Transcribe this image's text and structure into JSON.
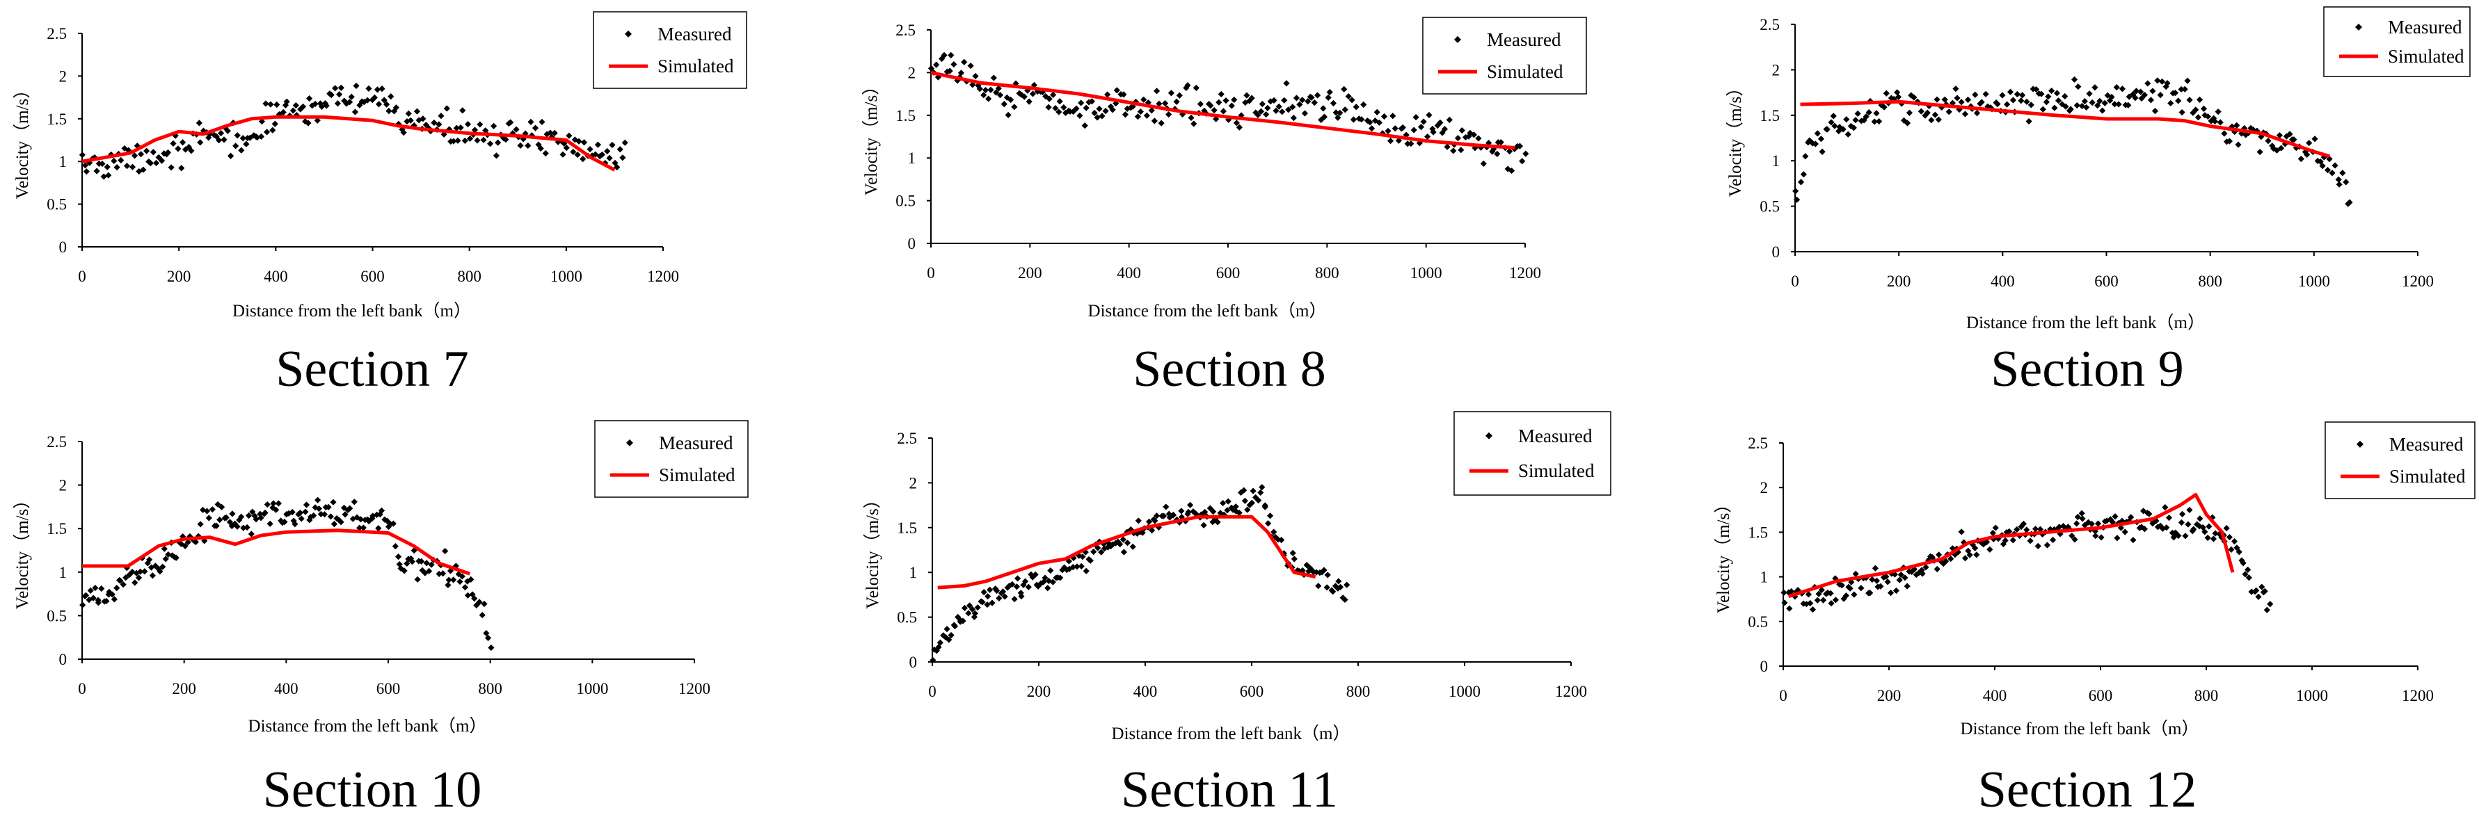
{
  "figure": {
    "legend_labels": {
      "measured": "Measured",
      "simulated": "Simulated"
    },
    "colors": {
      "measured": "#000000",
      "simulated": "#ff0000",
      "axis": "#000000"
    }
  },
  "chart_data": [
    {
      "type": "scatter",
      "title": "Section 7",
      "xlabel": "Distance from the left bank（m）",
      "ylabel": "Velocity（m/s）",
      "xlim": [
        0,
        1200
      ],
      "ylim": [
        0,
        2.5
      ],
      "xticks": [
        "0",
        "200",
        "400",
        "600",
        "800",
        "1000",
        "1200"
      ],
      "yticks": [
        "0",
        "0.5",
        "1",
        "1.5",
        "2",
        "2.5"
      ],
      "grid": false,
      "legend_position": "top-right",
      "series": [
        {
          "name": "Measured",
          "style": "points",
          "range": [
            0,
            1120
          ],
          "count": 220,
          "jitter": 0.13,
          "x": [
            0,
            100,
            150,
            200,
            300,
            350,
            400,
            500,
            600,
            650,
            700,
            800,
            900,
            1000,
            1050,
            1120
          ],
          "y": [
            0.95,
            1.0,
            1.1,
            1.15,
            1.3,
            1.25,
            1.55,
            1.7,
            1.72,
            1.55,
            1.45,
            1.35,
            1.28,
            1.22,
            1.15,
            1.1
          ]
        },
        {
          "name": "Simulated",
          "style": "line",
          "x": [
            0,
            100,
            150,
            200,
            250,
            300,
            350,
            400,
            500,
            600,
            650,
            700,
            800,
            900,
            1000,
            1050,
            1100
          ],
          "y": [
            1.0,
            1.1,
            1.25,
            1.35,
            1.32,
            1.42,
            1.5,
            1.52,
            1.52,
            1.48,
            1.42,
            1.38,
            1.33,
            1.3,
            1.25,
            1.05,
            0.9
          ]
        }
      ]
    },
    {
      "type": "scatter",
      "title": "Section 8",
      "xlabel": "Distance from the left bank（m）",
      "ylabel": "Velocity（m/s）",
      "xlim": [
        0,
        1200
      ],
      "ylim": [
        0,
        2.5
      ],
      "xticks": [
        "0",
        "200",
        "400",
        "600",
        "800",
        "1000",
        "1200"
      ],
      "yticks": [
        "0",
        "0.5",
        "1",
        "1.5",
        "2",
        "2.5"
      ],
      "grid": false,
      "legend_position": "top-right",
      "series": [
        {
          "name": "Measured",
          "style": "points",
          "range": [
            0,
            1200
          ],
          "count": 230,
          "jitter": 0.14,
          "x": [
            0,
            50,
            100,
            200,
            300,
            400,
            500,
            600,
            700,
            800,
            900,
            1000,
            1100,
            1200
          ],
          "y": [
            1.95,
            2.05,
            1.85,
            1.7,
            1.6,
            1.6,
            1.6,
            1.6,
            1.65,
            1.6,
            1.45,
            1.35,
            1.2,
            1.0
          ]
        },
        {
          "name": "Simulated",
          "style": "line",
          "x": [
            0,
            100,
            200,
            300,
            400,
            500,
            600,
            700,
            800,
            900,
            1000,
            1100,
            1180
          ],
          "y": [
            2.0,
            1.88,
            1.82,
            1.75,
            1.65,
            1.55,
            1.48,
            1.42,
            1.35,
            1.28,
            1.2,
            1.15,
            1.12
          ]
        }
      ]
    },
    {
      "type": "scatter",
      "title": "Section 9",
      "xlabel": "Distance from the left bank（m）",
      "ylabel": "Velocity（m/s）",
      "xlim": [
        0,
        1200
      ],
      "ylim": [
        0,
        2.5
      ],
      "xticks": [
        "0",
        "200",
        "400",
        "600",
        "800",
        "1000",
        "1200"
      ],
      "yticks": [
        "0",
        "0.5",
        "1",
        "1.5",
        "2",
        "2.5"
      ],
      "grid": false,
      "legend_position": "top-right",
      "series": [
        {
          "name": "Measured",
          "style": "points",
          "range": [
            0,
            1070
          ],
          "count": 220,
          "jitter": 0.12,
          "x": [
            0,
            30,
            100,
            200,
            300,
            400,
            500,
            600,
            700,
            750,
            800,
            900,
            1000,
            1050,
            1070
          ],
          "y": [
            0.6,
            1.2,
            1.4,
            1.6,
            1.6,
            1.65,
            1.68,
            1.68,
            1.75,
            1.7,
            1.45,
            1.25,
            1.1,
            0.9,
            0.5
          ]
        },
        {
          "name": "Simulated",
          "style": "line",
          "x": [
            10,
            100,
            200,
            300,
            400,
            500,
            600,
            700,
            750,
            800,
            900,
            1000,
            1030
          ],
          "y": [
            1.62,
            1.63,
            1.65,
            1.6,
            1.55,
            1.5,
            1.46,
            1.46,
            1.44,
            1.38,
            1.3,
            1.1,
            1.05
          ]
        }
      ]
    },
    {
      "type": "scatter",
      "title": "Section 10",
      "xlabel": "Distance from the left bank（m）",
      "ylabel": "Velocity（m/s）",
      "xlim": [
        0,
        1200
      ],
      "ylim": [
        0,
        2.5
      ],
      "xticks": [
        "0",
        "200",
        "400",
        "600",
        "800",
        "1000",
        "1200"
      ],
      "yticks": [
        "0",
        "0.5",
        "1",
        "1.5",
        "2",
        "2.5"
      ],
      "grid": false,
      "legend_position": "top-right",
      "series": [
        {
          "name": "Measured",
          "style": "points",
          "range": [
            0,
            800
          ],
          "count": 190,
          "jitter": 0.12,
          "x": [
            0,
            100,
            200,
            260,
            300,
            400,
            500,
            600,
            620,
            650,
            700,
            750,
            780,
            800
          ],
          "y": [
            0.6,
            0.95,
            1.3,
            1.7,
            1.55,
            1.65,
            1.7,
            1.6,
            1.1,
            1.05,
            1.05,
            0.9,
            0.6,
            0.3
          ]
        },
        {
          "name": "Simulated",
          "style": "line",
          "x": [
            0,
            90,
            150,
            200,
            250,
            300,
            350,
            400,
            500,
            600,
            650,
            700,
            760
          ],
          "y": [
            1.07,
            1.07,
            1.3,
            1.38,
            1.4,
            1.32,
            1.42,
            1.46,
            1.48,
            1.45,
            1.3,
            1.1,
            0.98
          ]
        }
      ]
    },
    {
      "type": "scatter",
      "title": "Section 11",
      "xlabel": "Distance from the left bank（m）",
      "ylabel": "Velocity（m/s）",
      "xlim": [
        0,
        1200
      ],
      "ylim": [
        0,
        2.5
      ],
      "xticks": [
        "0",
        "200",
        "400",
        "600",
        "800",
        "1000",
        "1200"
      ],
      "yticks": [
        "0",
        "0.5",
        "1",
        "1.5",
        "2",
        "2.5"
      ],
      "grid": false,
      "legend_position": "top-right",
      "series": [
        {
          "name": "Measured",
          "style": "points",
          "range": [
            0,
            780
          ],
          "count": 200,
          "jitter": 0.09,
          "x": [
            0,
            20,
            50,
            100,
            200,
            300,
            400,
            450,
            500,
            600,
            620,
            650,
            700,
            760,
            780
          ],
          "y": [
            0.15,
            0.2,
            0.5,
            0.7,
            0.9,
            1.2,
            1.5,
            1.65,
            1.65,
            1.8,
            1.85,
            1.3,
            1.0,
            0.85,
            0.75
          ]
        },
        {
          "name": "Simulated",
          "style": "line",
          "x": [
            10,
            60,
            100,
            150,
            200,
            250,
            300,
            400,
            500,
            600,
            630,
            680,
            720
          ],
          "y": [
            0.83,
            0.85,
            0.9,
            1.0,
            1.1,
            1.15,
            1.3,
            1.5,
            1.62,
            1.62,
            1.45,
            1.0,
            0.95
          ]
        }
      ]
    },
    {
      "type": "scatter",
      "title": "Section 12",
      "xlabel": "Distance from the left bank（m）",
      "ylabel": "Velocity（m/s）",
      "xlim": [
        0,
        1200
      ],
      "ylim": [
        0,
        2.5
      ],
      "xticks": [
        "0",
        "200",
        "400",
        "600",
        "800",
        "1000",
        "1200"
      ],
      "yticks": [
        "0",
        "0.5",
        "1",
        "1.5",
        "2",
        "2.5"
      ],
      "grid": false,
      "legend_position": "top-right",
      "series": [
        {
          "name": "Measured",
          "style": "points",
          "range": [
            0,
            920
          ],
          "count": 220,
          "jitter": 0.12,
          "x": [
            0,
            100,
            200,
            300,
            400,
            500,
            600,
            700,
            800,
            850,
            880,
            920
          ],
          "y": [
            0.7,
            0.85,
            0.95,
            1.2,
            1.45,
            1.5,
            1.55,
            1.65,
            1.55,
            1.4,
            1.0,
            0.65
          ]
        },
        {
          "name": "Simulated",
          "style": "line",
          "x": [
            10,
            100,
            200,
            300,
            350,
            400,
            500,
            600,
            700,
            750,
            780,
            800,
            830,
            850
          ],
          "y": [
            0.78,
            0.95,
            1.05,
            1.2,
            1.38,
            1.45,
            1.5,
            1.55,
            1.65,
            1.8,
            1.92,
            1.7,
            1.5,
            1.05
          ]
        }
      ]
    }
  ]
}
